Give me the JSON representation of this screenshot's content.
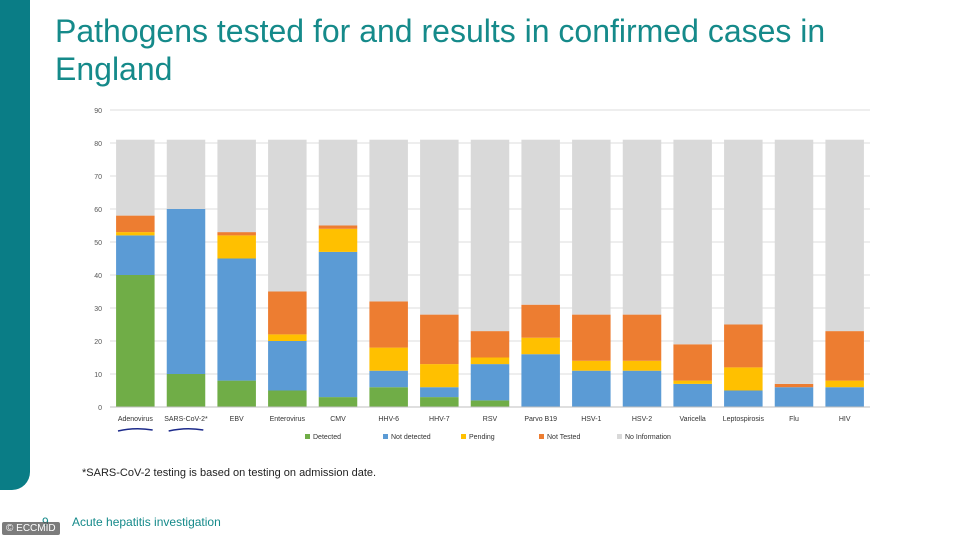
{
  "slide": {
    "title": "Pathogens tested for and results in confirmed cases in England",
    "footnote": "*SARS-CoV-2 testing is based on testing on admission date.",
    "page_number": "9",
    "footer_title": "Acute hepatitis investigation",
    "credit": "© ECCMID",
    "accent_color": "#0a7d86"
  },
  "chart_data": {
    "type": "bar",
    "stacked": true,
    "title": "",
    "xlabel": "",
    "ylabel": "",
    "ylim": [
      0,
      90
    ],
    "yticks": [
      0,
      10,
      20,
      30,
      40,
      50,
      60,
      70,
      80,
      90
    ],
    "grid": true,
    "legend_position": "bottom",
    "categories": [
      "Adenovirus",
      "SARS-CoV-2*",
      "EBV",
      "Enterovirus",
      "CMV",
      "HHV-6",
      "HHV-7",
      "RSV",
      "Parvo B19",
      "HSV-1",
      "HSV-2",
      "Varicella",
      "Leptospirosis",
      "Flu",
      "HIV"
    ],
    "underlined_categories": [
      "Adenovirus",
      "SARS-CoV-2*"
    ],
    "series": [
      {
        "name": "Detected",
        "color": "#70ad47",
        "values": [
          40,
          10,
          8,
          5,
          3,
          6,
          3,
          2,
          0,
          0,
          0,
          0,
          0,
          0,
          0
        ]
      },
      {
        "name": "Not detected",
        "color": "#5b9bd5",
        "values": [
          12,
          50,
          37,
          15,
          44,
          5,
          3,
          11,
          16,
          11,
          11,
          7,
          5,
          6,
          6
        ]
      },
      {
        "name": "Pending",
        "color": "#ffc000",
        "values": [
          1,
          0,
          7,
          2,
          7,
          7,
          7,
          2,
          5,
          3,
          3,
          1,
          7,
          0,
          2
        ]
      },
      {
        "name": "Not Tested",
        "color": "#ed7d31",
        "values": [
          5,
          0,
          1,
          13,
          1,
          14,
          15,
          8,
          10,
          14,
          14,
          11,
          13,
          1,
          15
        ]
      },
      {
        "name": "No Information",
        "color": "#d9d9d9",
        "values": [
          23,
          21,
          28,
          46,
          26,
          49,
          53,
          58,
          50,
          53,
          53,
          62,
          56,
          74,
          58
        ]
      }
    ]
  }
}
